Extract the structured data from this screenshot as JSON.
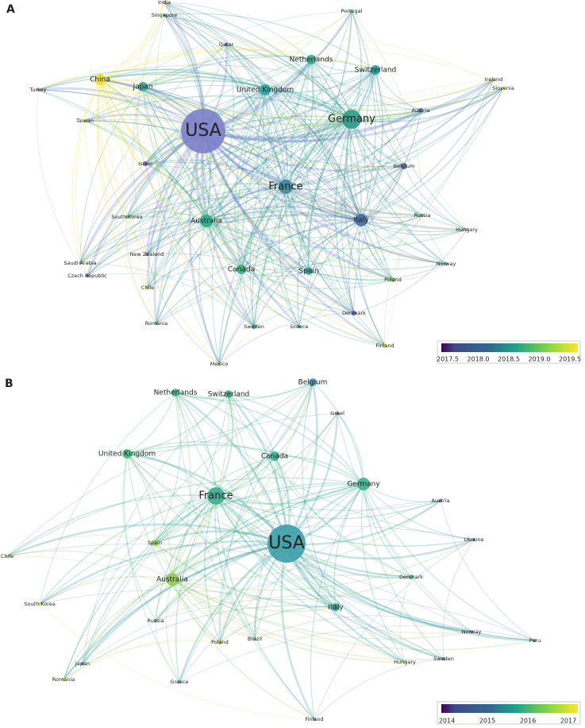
{
  "panels": [
    {
      "label": "A",
      "nodes": [
        "USA",
        "Germany",
        "France",
        "Italy",
        "Australia",
        "United Kingdom",
        "Netherlands",
        "Switzerland",
        "Japan",
        "China",
        "Canada",
        "Spain",
        "Belgium",
        "Israel",
        "Austria",
        "Russia",
        "Poland",
        "Denmark",
        "Sweden",
        "Greece",
        "Finland",
        "Norway",
        "Hungary",
        "Slovenia",
        "Ireland",
        "Portugal",
        "India",
        "Singapore",
        "Qatar",
        "Turkey",
        "Taiwan",
        "South Korea",
        "New Zealand",
        "Saudi Arabia",
        "Czech Republic",
        "Chile",
        "Romania",
        "Mexico"
      ],
      "colorbar": {
        "ticks": [
          "2017.5",
          "2018.0",
          "2018.5",
          "2019.0",
          "2019.5"
        ]
      }
    },
    {
      "label": "B",
      "nodes": [
        "USA",
        "France",
        "Germany",
        "Canada",
        "Australia",
        "Spain",
        "United Kingdom",
        "Netherlands",
        "Switzerland",
        "Belgium",
        "Israel",
        "Austria",
        "Ukraine",
        "Denmark",
        "Italy",
        "Norway",
        "Peru",
        "Sweden",
        "Hungary",
        "Poland",
        "Brazil",
        "Russia",
        "South Korea",
        "Japan",
        "Romania",
        "Chile",
        "Greece",
        "Finland"
      ],
      "colorbar": {
        "ticks": [
          "2014",
          "2015",
          "2016",
          "2017"
        ]
      }
    }
  ]
}
